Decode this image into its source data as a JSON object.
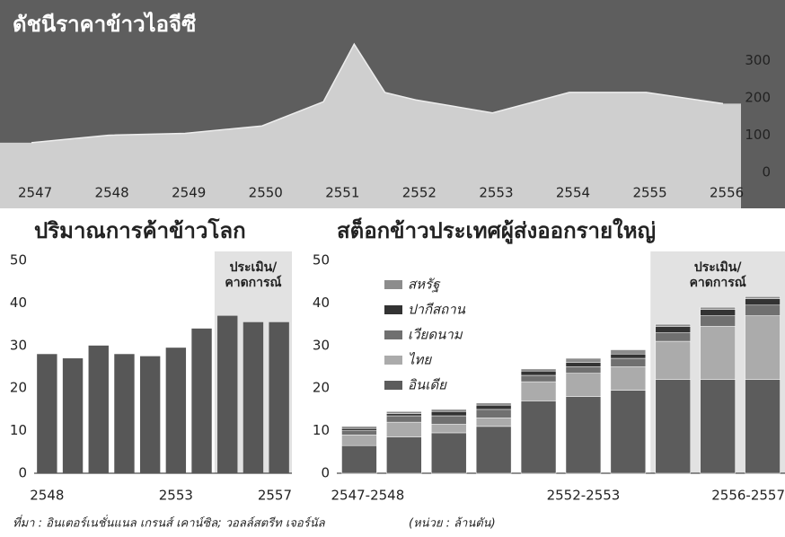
{
  "chart_data": [
    {
      "type": "area",
      "title": "ดัชนีราคาข้าวไอจีซี",
      "x": [
        2547,
        2548,
        2549,
        2550,
        2550.8,
        2551.2,
        2551.6,
        2552,
        2553,
        2554,
        2555,
        2556
      ],
      "values": [
        80,
        100,
        105,
        125,
        190,
        345,
        215,
        195,
        160,
        215,
        215,
        185
      ],
      "xticks": [
        2547,
        2548,
        2549,
        2550,
        2551,
        2552,
        2553,
        2554,
        2555,
        2556
      ],
      "xlim": [
        2547,
        2556
      ],
      "ylim": [
        0,
        350
      ],
      "yticks": [
        0,
        100,
        200,
        300
      ],
      "color": "#cfcfcf"
    },
    {
      "type": "bar",
      "title": "ปริมาณการค้าข้าวโลก",
      "categories": [
        "2548",
        null,
        null,
        null,
        null,
        "2553",
        null,
        null,
        null,
        "2557"
      ],
      "values": [
        28,
        27,
        30,
        28,
        27.5,
        29.5,
        34,
        37,
        35.5,
        35.5
      ],
      "color": "#575757",
      "ylim": [
        0,
        50
      ],
      "yticks": [
        0,
        10,
        20,
        30,
        40,
        50
      ],
      "annotation": [
        "ประเมิน/",
        "คาดการณ์"
      ]
    },
    {
      "type": "stacked_bar",
      "title": "สต็อกข้าวประเทศผู้ส่งออกรายใหญ่",
      "categories": [
        "2547-2548",
        null,
        null,
        null,
        null,
        "2552-2553",
        null,
        null,
        null,
        "2556-2557"
      ],
      "series": [
        {
          "name": "อินเดีย",
          "color": "#5c5c5c",
          "values": [
            6.5,
            8.5,
            9.5,
            11,
            17,
            18,
            19.5,
            22,
            22,
            22
          ]
        },
        {
          "name": "ไทย",
          "color": "#ababab",
          "values": [
            2.5,
            3.5,
            2,
            2,
            4.5,
            5.5,
            5.5,
            9,
            12.5,
            15
          ]
        },
        {
          "name": "เวียดนาม",
          "color": "#707070",
          "values": [
            1,
            1.5,
            2,
            2,
            1.5,
            1.5,
            2,
            2,
            2.5,
            2.5
          ]
        },
        {
          "name": "ปากีสถาน",
          "color": "#333333",
          "values": [
            0.5,
            0.5,
            1,
            1,
            1,
            1,
            1,
            1.5,
            1.5,
            1.5
          ]
        },
        {
          "name": "สหรัฐ",
          "color": "#8c8c8c",
          "values": [
            0.5,
            0.5,
            0.5,
            0.5,
            0.5,
            1,
            1,
            0.5,
            0.5,
            0.5
          ]
        }
      ],
      "ylim": [
        0,
        50
      ],
      "yticks": [
        0,
        10,
        20,
        30,
        40,
        50
      ],
      "annotation": [
        "ประเมิน/",
        "คาดการณ์"
      ]
    }
  ],
  "footer": {
    "source": "ที่มา : อินเตอร์เนชั่นแนล เกรนส์ เคาน์ซิล; วอลล์สตรีท เจอร์นัล",
    "unit": "(หน่วย : ล้านตัน)"
  }
}
